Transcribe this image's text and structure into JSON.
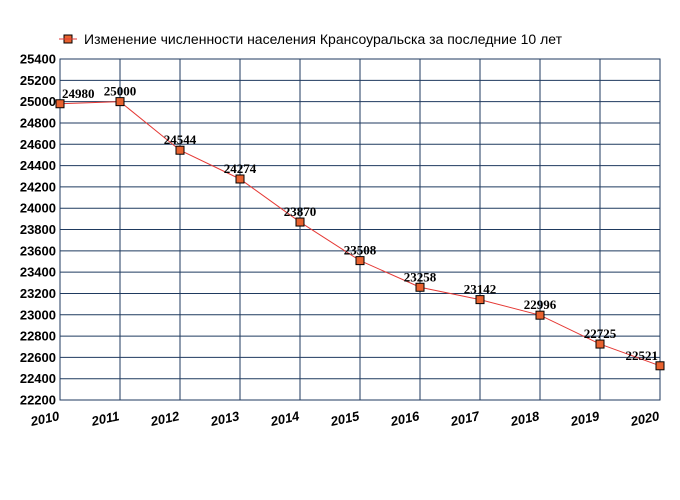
{
  "chart_data": {
    "type": "line",
    "title": "",
    "xlabel": "",
    "ylabel": "",
    "legend_position": "top",
    "x": [
      "2010",
      "2011",
      "2012",
      "2013",
      "2014",
      "2015",
      "2016",
      "2017",
      "2018",
      "2019",
      "2020"
    ],
    "series": [
      {
        "name": "Изменение численности населения Крансоуральска за последние 10 лет",
        "values": [
          24980,
          25000,
          24544,
          24274,
          23870,
          23508,
          23258,
          23142,
          22996,
          22725,
          22521
        ],
        "color": "#e53935",
        "marker_color": "#e8622f"
      }
    ],
    "ylim": [
      22200,
      25400
    ],
    "ytick_step": 200,
    "grid": true,
    "grid_color": "#1f3a5f"
  }
}
